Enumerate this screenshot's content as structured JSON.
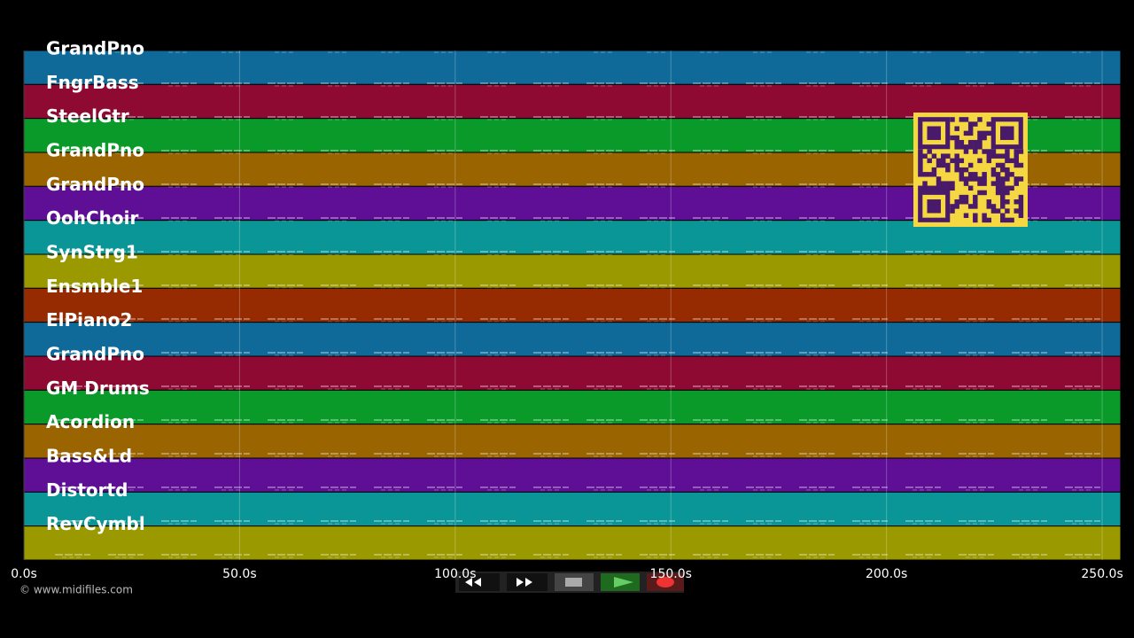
{
  "tracks": [
    {
      "name": "GrandPno",
      "color": "#0f6a9a"
    },
    {
      "name": "FngrBass",
      "color": "#8e0a33"
    },
    {
      "name": "SteelGtr",
      "color": "#0a9a2a"
    },
    {
      "name": "GrandPno",
      "color": "#9a6400"
    },
    {
      "name": "GrandPno",
      "color": "#5e0f96"
    },
    {
      "name": "OohChoir",
      "color": "#0a9696"
    },
    {
      "name": "SynStrg1",
      "color": "#9a9a00"
    },
    {
      "name": "Ensmble1",
      "color": "#962a00"
    },
    {
      "name": "ElPiano2",
      "color": "#0f6a9a"
    },
    {
      "name": "GrandPno",
      "color": "#8e0a33"
    },
    {
      "name": "GM Drums",
      "color": "#0a9a2a"
    },
    {
      "name": "Acordion",
      "color": "#9a6400"
    },
    {
      "name": "Bass&Ld",
      "color": "#5e0f96"
    },
    {
      "name": "Distortd",
      "color": "#0a9696"
    },
    {
      "name": "RevCymbl",
      "color": "#9a9a00"
    }
  ],
  "time_axis": {
    "xlim": [
      0,
      254.3
    ],
    "ticks": [
      {
        "value": 0,
        "label": "0.0s"
      },
      {
        "value": 50,
        "label": "50.0s"
      },
      {
        "value": 100,
        "label": "100.0s"
      },
      {
        "value": 150,
        "label": "150.0s"
      },
      {
        "value": 200,
        "label": "200.0s"
      },
      {
        "value": 250,
        "label": "250.0s"
      }
    ]
  },
  "footer": {
    "credit": "© www.midifiles.com"
  }
}
